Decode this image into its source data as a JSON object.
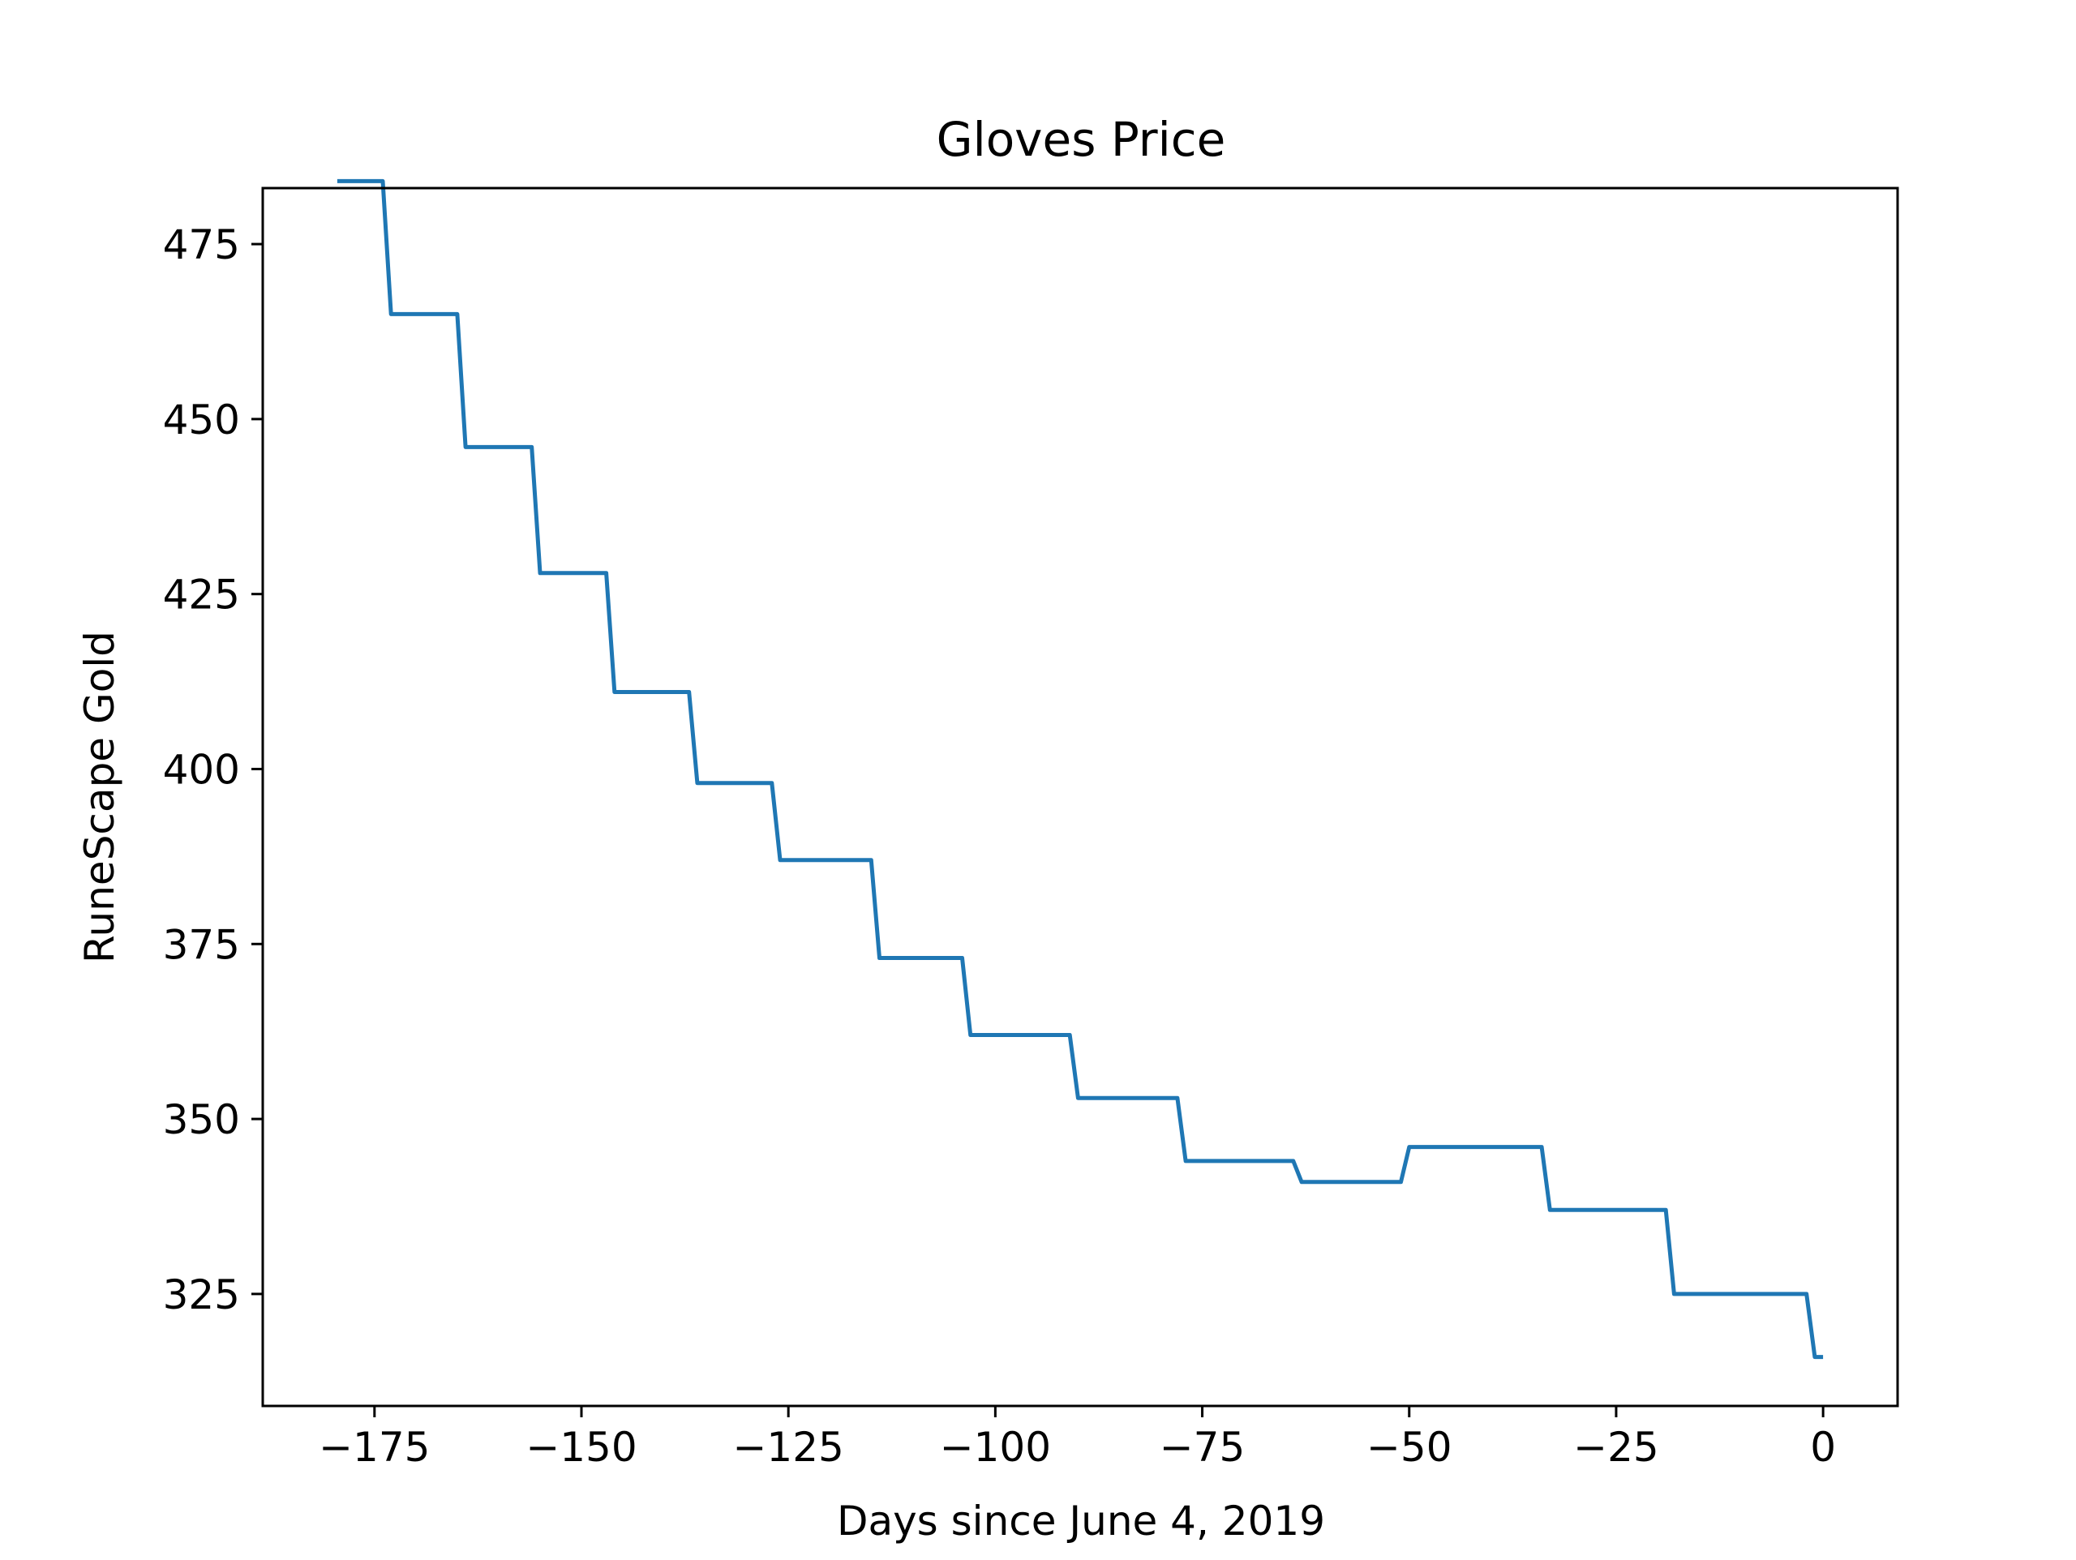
{
  "chart_data": {
    "type": "line",
    "title": "Gloves Price",
    "xlabel": "Days since June 4, 2019",
    "ylabel": "RuneScape Gold",
    "xlim": [
      -188.5,
      9
    ],
    "ylim": [
      309,
      483
    ],
    "xticks": [
      -175,
      -150,
      -125,
      -100,
      -75,
      -50,
      -25,
      0
    ],
    "xtick_labels": [
      "−175",
      "−150",
      "−125",
      "−100",
      "−75",
      "−50",
      "−25",
      "0"
    ],
    "yticks": [
      325,
      350,
      375,
      400,
      425,
      450,
      475
    ],
    "ytick_labels": [
      "325",
      "350",
      "375",
      "400",
      "425",
      "450",
      "475"
    ],
    "grid": false,
    "series": [
      {
        "color": "#1f77b4",
        "x": [
          -179.5,
          -174,
          -173,
          -165,
          -164,
          -156,
          -155,
          -147,
          -146,
          -137,
          -136,
          -127,
          -126,
          -115,
          -114,
          -104,
          -103,
          -91,
          -90,
          -78,
          -77,
          -64,
          -63,
          -51,
          -50,
          -34,
          -33,
          -19,
          -18,
          -2,
          -1,
          0
        ],
        "y": [
          484,
          484,
          465,
          465,
          446,
          446,
          428,
          428,
          411,
          411,
          398,
          398,
          387,
          387,
          373,
          373,
          362,
          362,
          353,
          353,
          344,
          344,
          341,
          341,
          346,
          346,
          337,
          337,
          325,
          325,
          316,
          316
        ]
      }
    ]
  }
}
